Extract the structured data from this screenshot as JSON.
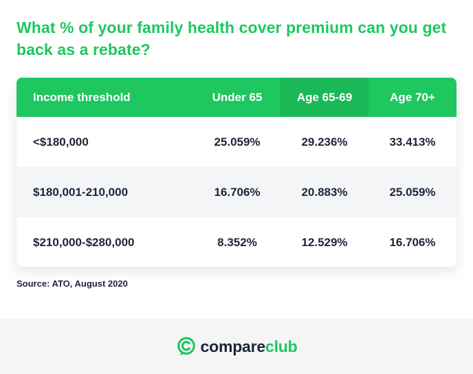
{
  "title": "What % of your family health cover premium can you get back as a rebate?",
  "table": {
    "headers": [
      "Income threshold",
      "Under 65",
      "Age 65-69",
      "Age 70+"
    ],
    "rows": [
      [
        "<$180,000",
        "25.059%",
        "29.236%",
        "33.413%"
      ],
      [
        "$180,001-210,000",
        "16.706%",
        "20.883%",
        "25.059%"
      ],
      [
        "$210,000-$280,000",
        "8.352%",
        "12.529%",
        "16.706%"
      ]
    ]
  },
  "source": "Source: ATO, August 2020",
  "brand": {
    "name_part1": "compare",
    "name_part2": "club",
    "icon": "compareclub-logo-icon"
  },
  "colors": {
    "accent_green": "#1ec760",
    "header_dark_green": "#1bb857",
    "text_dark": "#1d2538",
    "alt_row": "#f4f5f7",
    "footer_bg": "#f5f5f6"
  }
}
